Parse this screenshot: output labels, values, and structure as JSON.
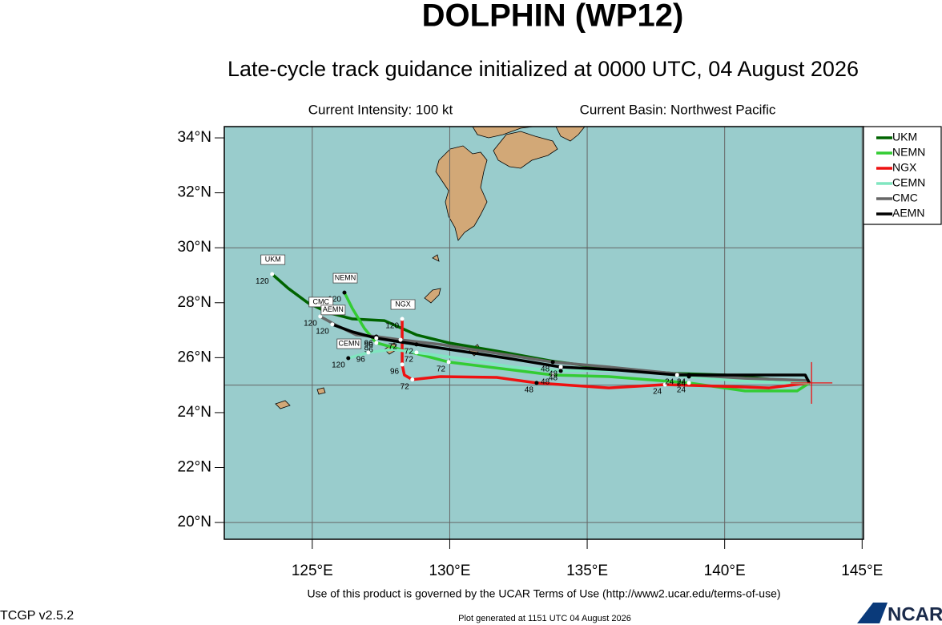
{
  "chart_data": {
    "type": "track_map",
    "title": "DOLPHIN (WP12)",
    "subtitle": "Late-cycle track guidance initialized at 0000 UTC, 04 August 2026",
    "intensity": "Current Intensity: 100 kt",
    "basin": "Current Basin: Northwest Pacific",
    "footer": "Use of this product is governed by the UCAR Terms of Use (http://www2.ucar.edu/terms-of-use)",
    "version": "TCGP v2.5.2",
    "generated": "Plot generated at 1151 UTC  04 August 2026",
    "logo": "NCAR",
    "xlim": [
      121.8,
      145.05
    ],
    "ylim": [
      19.39,
      34.41
    ],
    "xticks": [
      {
        "value": 125,
        "label": "125°E"
      },
      {
        "value": 130,
        "label": "130°E"
      },
      {
        "value": 135,
        "label": "135°E"
      },
      {
        "value": 140,
        "label": "140°E"
      },
      {
        "value": 145,
        "label": "145°E"
      }
    ],
    "yticks": [
      {
        "value": 20,
        "label": "20°N"
      },
      {
        "value": 22,
        "label": "22°N"
      },
      {
        "value": 24,
        "label": "24°N"
      },
      {
        "value": 26,
        "label": "26°N"
      },
      {
        "value": 28,
        "label": "28°N"
      },
      {
        "value": 30,
        "label": "30°N"
      },
      {
        "value": 32,
        "label": "32°N"
      },
      {
        "value": 34,
        "label": "34°N"
      }
    ],
    "ygrid": [
      20,
      25,
      30
    ],
    "grid": true,
    "legend": "right",
    "current_position": {
      "lon": 143.16,
      "lat": 25.08,
      "color": "#ee1111"
    },
    "series": [
      {
        "name": "UKM",
        "color": "#006400",
        "x": [
          143.08,
          140.01,
          138.12,
          135.79,
          133.75,
          132.0,
          129.96,
          128.79,
          127.62,
          126.46,
          125.58,
          124.85,
          124.13,
          123.54
        ],
        "values": [
          25.08,
          25.37,
          25.43,
          25.6,
          25.87,
          26.19,
          26.54,
          26.83,
          27.35,
          27.41,
          27.64,
          27.99,
          28.52,
          29.04
        ],
        "point_labels": [
          null,
          null,
          null,
          null,
          null,
          null,
          null,
          null,
          null,
          null,
          null,
          null,
          null,
          120
        ]
      },
      {
        "name": "NEMN",
        "color": "#33cc33",
        "x": [
          143.08,
          142.64,
          140.74,
          138.7,
          135.79,
          133.75,
          132.29,
          129.96,
          128.21,
          127.33,
          126.9,
          126.46,
          126.17
        ],
        "values": [
          25.08,
          24.79,
          24.79,
          25.08,
          25.31,
          25.37,
          25.55,
          25.84,
          26.3,
          26.54,
          27.06,
          27.79,
          28.37
        ],
        "point_labels": [
          null,
          null,
          null,
          24,
          null,
          48,
          null,
          72,
          null,
          96,
          null,
          null,
          120
        ]
      },
      {
        "name": "NGX",
        "color": "#ee1111",
        "x": [
          143.08,
          141.62,
          139.87,
          137.83,
          135.79,
          134.04,
          133.16,
          131.71,
          129.66,
          128.64,
          128.35,
          128.27,
          128.27,
          128.27
        ],
        "values": [
          25.08,
          24.9,
          24.96,
          25.02,
          24.9,
          25.02,
          25.08,
          25.28,
          25.31,
          25.2,
          25.37,
          25.75,
          26.48,
          27.41
        ],
        "point_labels": [
          null,
          null,
          null,
          24,
          null,
          null,
          48,
          null,
          null,
          72,
          null,
          96,
          null,
          120
        ]
      },
      {
        "name": "CEMN",
        "color": "#80e6c0",
        "x": [
          143.08,
          140.74,
          138.7,
          136.37,
          134.04,
          132.29,
          130.54,
          128.79,
          127.92,
          127.04,
          126.31
        ],
        "values": [
          25.08,
          25.14,
          25.31,
          25.55,
          25.52,
          25.66,
          25.95,
          26.19,
          26.3,
          26.19,
          25.98
        ],
        "point_labels": [
          null,
          null,
          24,
          null,
          48,
          null,
          null,
          72,
          null,
          96,
          120
        ]
      },
      {
        "name": "CMC",
        "color": "#666666",
        "x": [
          143.08,
          140.74,
          138.7,
          135.79,
          133.75,
          131.71,
          129.66,
          128.21,
          127.33,
          126.6,
          125.87,
          125.29
        ],
        "values": [
          25.17,
          25.25,
          25.37,
          25.66,
          25.84,
          26.16,
          26.48,
          26.65,
          26.77,
          26.83,
          27.18,
          27.5
        ],
        "point_labels": [
          null,
          null,
          24,
          null,
          48,
          null,
          null,
          72,
          96,
          null,
          null,
          120
        ]
      },
      {
        "name": "AEMN",
        "color": "#000000",
        "x": [
          143.08,
          142.93,
          140.74,
          138.27,
          136.08,
          134.04,
          132.29,
          130.39,
          128.79,
          127.33,
          126.46,
          125.73
        ],
        "values": [
          25.08,
          25.37,
          25.37,
          25.37,
          25.55,
          25.66,
          25.95,
          26.24,
          26.48,
          26.71,
          26.94,
          27.21
        ],
        "point_labels": [
          null,
          null,
          null,
          24,
          null,
          48,
          null,
          null,
          72,
          96,
          null,
          120
        ]
      }
    ]
  }
}
